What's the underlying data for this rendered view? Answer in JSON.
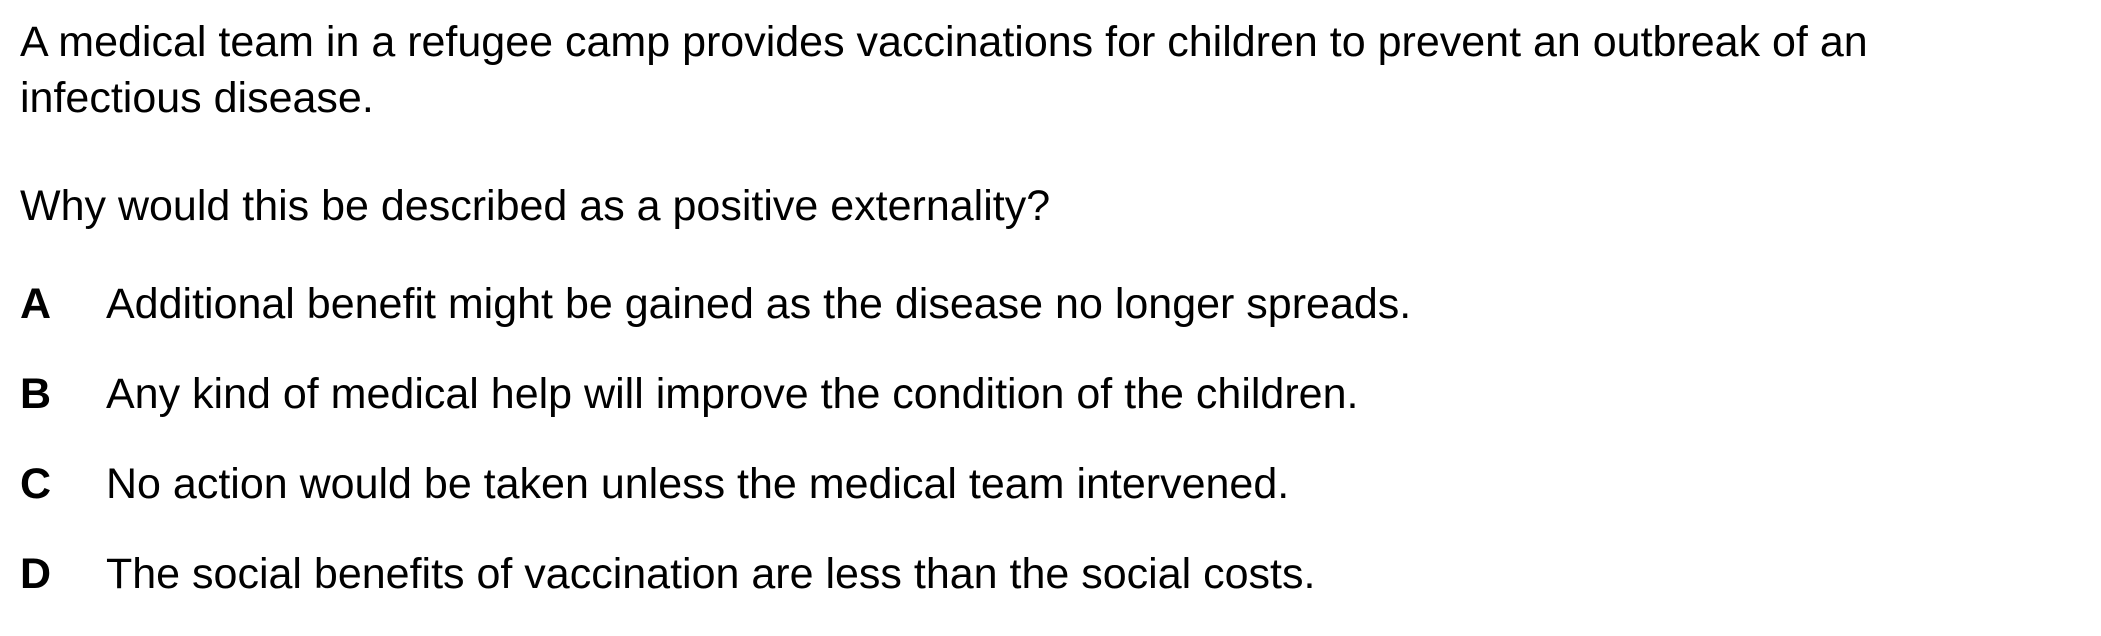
{
  "question": {
    "stem_lines": [
      "A medical team in a refugee camp provides vaccinations for children to prevent an outbreak of an",
      "infectious disease."
    ],
    "prompt": "Why would this be described as a positive externality?",
    "options": [
      {
        "letter": "A",
        "text": "Additional benefit might be gained as the disease no longer spreads."
      },
      {
        "letter": "B",
        "text": "Any kind of medical help will improve the condition of the children."
      },
      {
        "letter": "C",
        "text": "No action would be taken unless the medical team intervened."
      },
      {
        "letter": "D",
        "text": "The social benefits of vaccination are less than the social costs."
      }
    ]
  }
}
